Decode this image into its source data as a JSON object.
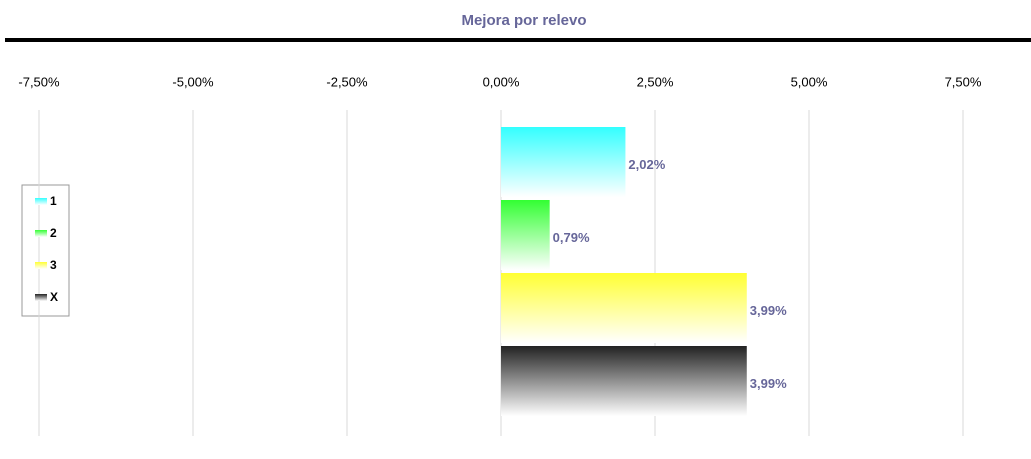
{
  "chart_data": {
    "type": "barh",
    "title": "Mejora por relevo",
    "xlim": [
      -7.5,
      7.5
    ],
    "xticks": [
      {
        "value": -7.5,
        "label": "-7,50%"
      },
      {
        "value": -5,
        "label": "-5,00%"
      },
      {
        "value": -2.5,
        "label": "-2,50%"
      },
      {
        "value": 0,
        "label": "0,00%"
      },
      {
        "value": 2.5,
        "label": "2,50%"
      },
      {
        "value": 5,
        "label": "5,00%"
      },
      {
        "value": 7.5,
        "label": "7,50%"
      }
    ],
    "grid": true,
    "legend": "left",
    "series": [
      {
        "name": "1",
        "color": "#33ffff",
        "values": [
          2.02
        ],
        "value_labels": [
          "2,02%"
        ]
      },
      {
        "name": "2",
        "color": "#33ff33",
        "values": [
          0.79
        ],
        "value_labels": [
          "0,79%"
        ]
      },
      {
        "name": "3",
        "color": "#ffff33",
        "values": [
          3.99
        ],
        "value_labels": [
          "3,99%"
        ]
      },
      {
        "name": "X",
        "color": "#222222",
        "values": [
          3.99
        ],
        "value_labels": [
          "3,99%"
        ]
      }
    ]
  }
}
